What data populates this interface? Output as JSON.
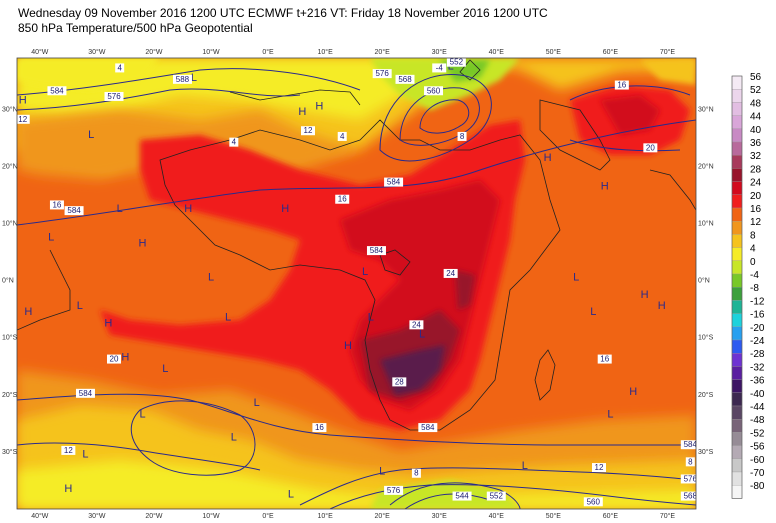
{
  "header": {
    "line1": "Wednesday 09 November 2016 1200 UTC  ECMWF  t+216  VT: Friday 18 November 2016 1200 UTC",
    "line2": "850 hPa Temperature/500 hPa Geopotential"
  },
  "axes": {
    "lon_top": [
      "40°W",
      "30°W",
      "20°W",
      "10°W",
      "0°E",
      "10°E",
      "20°E",
      "30°E",
      "40°E",
      "50°E",
      "60°E",
      "70°E"
    ],
    "lon_bottom": [
      "40°W",
      "30°W",
      "20°W",
      "10°W",
      "0°E",
      "10°E",
      "20°E",
      "30°E",
      "40°E",
      "50°E",
      "60°E",
      "70°E"
    ],
    "lat_left": [
      "30°N",
      "20°N",
      "10°N",
      "0°N",
      "10°S",
      "20°S",
      "30°S"
    ],
    "lat_right": [
      "30°N",
      "20°N",
      "10°N",
      "0°N",
      "10°S",
      "20°S",
      "30°S"
    ]
  },
  "legend": {
    "entries": [
      {
        "label": "56",
        "color": "#f4eaf4"
      },
      {
        "label": "52",
        "color": "#ecd6ec"
      },
      {
        "label": "48",
        "color": "#e2bee2"
      },
      {
        "label": "44",
        "color": "#d9a6d9"
      },
      {
        "label": "40",
        "color": "#c88ac4"
      },
      {
        "label": "36",
        "color": "#b86a9c"
      },
      {
        "label": "32",
        "color": "#a83a5c"
      },
      {
        "label": "28",
        "color": "#98142c"
      },
      {
        "label": "24",
        "color": "#d20a1e"
      },
      {
        "label": "20",
        "color": "#f01e1e"
      },
      {
        "label": "16",
        "color": "#f06414"
      },
      {
        "label": "12",
        "color": "#f0961e"
      },
      {
        "label": "8",
        "color": "#f5c31e"
      },
      {
        "label": "4",
        "color": "#f5ec28"
      },
      {
        "label": "0",
        "color": "#c8e628"
      },
      {
        "label": "-4",
        "color": "#78c828"
      },
      {
        "label": "-8",
        "color": "#3ca03c"
      },
      {
        "label": "-12",
        "color": "#1eb496"
      },
      {
        "label": "-16",
        "color": "#1ed2dc"
      },
      {
        "label": "-20",
        "color": "#28a0f0"
      },
      {
        "label": "-24",
        "color": "#2d5af0"
      },
      {
        "label": "-28",
        "color": "#6e32d2"
      },
      {
        "label": "-32",
        "color": "#5a1ea0"
      },
      {
        "label": "-36",
        "color": "#3c1464"
      },
      {
        "label": "-40",
        "color": "#3c2850"
      },
      {
        "label": "-44",
        "color": "#5a4664"
      },
      {
        "label": "-48",
        "color": "#786478"
      },
      {
        "label": "-52",
        "color": "#968c96"
      },
      {
        "label": "-56",
        "color": "#b4aab4"
      },
      {
        "label": "-60",
        "color": "#c8c8c8"
      },
      {
        "label": "-70",
        "color": "#e1e1e1"
      },
      {
        "label": "-80",
        "color": "#f5f5f5"
      }
    ]
  },
  "pressure_centers": [
    {
      "type": "L",
      "lon": -13,
      "lat": 35
    },
    {
      "type": "H",
      "lon": -43,
      "lat": 31
    },
    {
      "type": "L",
      "lon": -31,
      "lat": 25
    },
    {
      "type": "H",
      "lon": 6,
      "lat": 29
    },
    {
      "type": "H",
      "lon": 9,
      "lat": 30
    },
    {
      "type": "L",
      "lon": 32,
      "lat": 37
    },
    {
      "type": "H",
      "lon": 49,
      "lat": 21
    },
    {
      "type": "H",
      "lon": 59,
      "lat": 16
    },
    {
      "type": "L",
      "lon": -26,
      "lat": 12
    },
    {
      "type": "H",
      "lon": -14,
      "lat": 12
    },
    {
      "type": "H",
      "lon": 3,
      "lat": 12
    },
    {
      "type": "L",
      "lon": -38,
      "lat": 7
    },
    {
      "type": "H",
      "lon": -22,
      "lat": 6
    },
    {
      "type": "L",
      "lon": -10,
      "lat": 0
    },
    {
      "type": "L",
      "lon": 17,
      "lat": 1
    },
    {
      "type": "L",
      "lon": 54,
      "lat": 0
    },
    {
      "type": "H",
      "lon": 66,
      "lat": -3
    },
    {
      "type": "H",
      "lon": 69,
      "lat": -5
    },
    {
      "type": "H",
      "lon": -42,
      "lat": -6
    },
    {
      "type": "L",
      "lon": -33,
      "lat": -5
    },
    {
      "type": "H",
      "lon": -28,
      "lat": -8
    },
    {
      "type": "L",
      "lon": -7,
      "lat": -7
    },
    {
      "type": "L",
      "lon": 18,
      "lat": -7
    },
    {
      "type": "L",
      "lon": 57,
      "lat": -6
    },
    {
      "type": "L",
      "lon": 27,
      "lat": -10
    },
    {
      "type": "H",
      "lon": 14,
      "lat": -12
    },
    {
      "type": "H",
      "lon": -25,
      "lat": -14
    },
    {
      "type": "L",
      "lon": -18,
      "lat": -16
    },
    {
      "type": "L",
      "lon": -22,
      "lat": -24
    },
    {
      "type": "L",
      "lon": -2,
      "lat": -22
    },
    {
      "type": "L",
      "lon": 60,
      "lat": -24
    },
    {
      "type": "H",
      "lon": 64,
      "lat": -20
    },
    {
      "type": "L",
      "lon": -6,
      "lat": -28
    },
    {
      "type": "L",
      "lon": -32,
      "lat": -31
    },
    {
      "type": "L",
      "lon": 4,
      "lat": -38
    },
    {
      "type": "L",
      "lon": 20,
      "lat": -34
    },
    {
      "type": "L",
      "lon": 45,
      "lat": -33
    },
    {
      "type": "H",
      "lon": -35,
      "lat": -37
    }
  ],
  "contour_labels": [
    {
      "text": "584",
      "lon": -37,
      "lat": 33
    },
    {
      "text": "576",
      "lon": -27,
      "lat": 32
    },
    {
      "text": "588",
      "lon": -15,
      "lat": 35
    },
    {
      "text": "576",
      "lon": 20,
      "lat": 36
    },
    {
      "text": "568",
      "lon": 24,
      "lat": 35
    },
    {
      "text": "560",
      "lon": 29,
      "lat": 33
    },
    {
      "text": "552",
      "lon": 33,
      "lat": 38
    },
    {
      "text": "-4",
      "lon": 30,
      "lat": 37
    },
    {
      "text": "16",
      "lon": 62,
      "lat": 34
    },
    {
      "text": "12",
      "lon": -43,
      "lat": 28
    },
    {
      "text": "12",
      "lon": 7,
      "lat": 26
    },
    {
      "text": "4",
      "lon": 13,
      "lat": 25
    },
    {
      "text": "4",
      "lon": -6,
      "lat": 24
    },
    {
      "text": "8",
      "lon": 34,
      "lat": 25
    },
    {
      "text": "4",
      "lon": -26,
      "lat": 37
    },
    {
      "text": "20",
      "lon": 67,
      "lat": 23
    },
    {
      "text": "16",
      "lon": -37,
      "lat": 13
    },
    {
      "text": "584",
      "lon": -34,
      "lat": 12
    },
    {
      "text": "16",
      "lon": 13,
      "lat": 14
    },
    {
      "text": "584",
      "lon": 22,
      "lat": 17
    },
    {
      "text": "584",
      "lon": 19,
      "lat": 5
    },
    {
      "text": "24",
      "lon": 32,
      "lat": 1
    },
    {
      "text": "24",
      "lon": 26,
      "lat": -8
    },
    {
      "text": "20",
      "lon": -27,
      "lat": -14
    },
    {
      "text": "584",
      "lon": -32,
      "lat": -20
    },
    {
      "text": "28",
      "lon": 23,
      "lat": -18
    },
    {
      "text": "16",
      "lon": 9,
      "lat": -26
    },
    {
      "text": "584",
      "lon": 28,
      "lat": -26
    },
    {
      "text": "16",
      "lon": 59,
      "lat": -14
    },
    {
      "text": "12",
      "lon": -35,
      "lat": -30
    },
    {
      "text": "584",
      "lon": 74,
      "lat": -29
    },
    {
      "text": "8",
      "lon": 74,
      "lat": -32
    },
    {
      "text": "576",
      "lon": 74,
      "lat": -35
    },
    {
      "text": "568",
      "lon": 74,
      "lat": -38
    },
    {
      "text": "12",
      "lon": 58,
      "lat": -33
    },
    {
      "text": "8",
      "lon": 26,
      "lat": -34
    },
    {
      "text": "576",
      "lon": 22,
      "lat": -37
    },
    {
      "text": "544",
      "lon": 34,
      "lat": -38
    },
    {
      "text": "552",
      "lon": 40,
      "lat": -38
    },
    {
      "text": "560",
      "lon": 57,
      "lat": -39
    }
  ]
}
